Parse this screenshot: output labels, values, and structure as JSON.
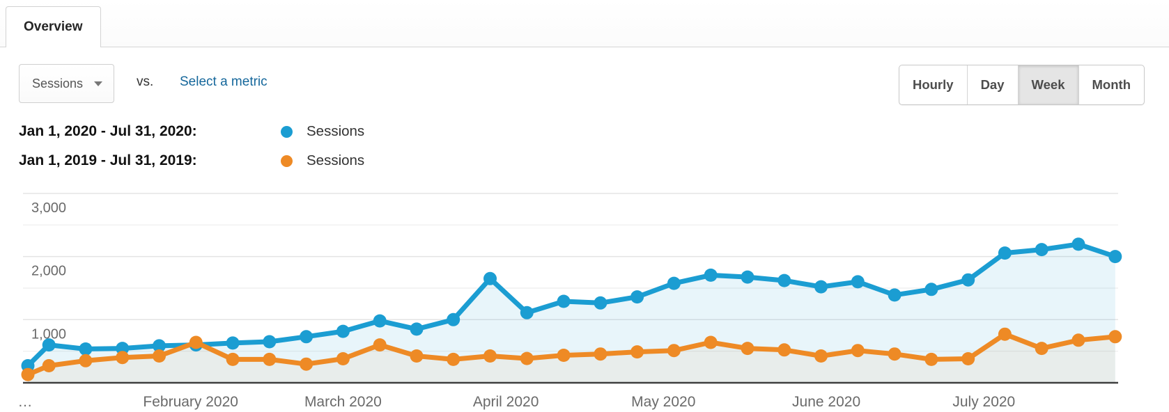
{
  "tab": {
    "label": "Overview"
  },
  "controls": {
    "metric_selector": {
      "value": "Sessions"
    },
    "vs_label": "vs.",
    "select_metric_link": "Select a metric",
    "granularity": {
      "options": [
        "Hourly",
        "Day",
        "Week",
        "Month"
      ],
      "selected": "Week"
    }
  },
  "legend": [
    {
      "range": "Jan 1, 2020 - Jul 31, 2020:",
      "series": "Sessions",
      "color": "#1b9dd2"
    },
    {
      "range": "Jan 1, 2019 - Jul 31, 2019:",
      "series": "Sessions",
      "color": "#ee8a25"
    }
  ],
  "chart_data": {
    "type": "line",
    "title": "",
    "xlabel": "",
    "ylabel": "",
    "x": [
      "Jan 1",
      "Jan 5",
      "Jan 12",
      "Jan 19",
      "Jan 26",
      "Feb 2",
      "Feb 9",
      "Feb 16",
      "Feb 23",
      "Mar 1",
      "Mar 8",
      "Mar 15",
      "Mar 22",
      "Mar 29",
      "Apr 5",
      "Apr 12",
      "Apr 19",
      "Apr 26",
      "May 3",
      "May 10",
      "May 17",
      "May 24",
      "May 31",
      "Jun 7",
      "Jun 14",
      "Jun 21",
      "Jun 28",
      "Jul 5",
      "Jul 12",
      "Jul 19",
      "Jul 26"
    ],
    "series": [
      {
        "name": "Sessions (Jan 1, 2020 - Jul 31, 2020)",
        "color": "#1b9dd2",
        "values": [
          270,
          600,
          535,
          545,
          585,
          600,
          630,
          650,
          730,
          815,
          980,
          850,
          1000,
          1650,
          1110,
          1290,
          1265,
          1360,
          1575,
          1705,
          1675,
          1620,
          1520,
          1600,
          1390,
          1480,
          1630,
          2055,
          2110,
          2195,
          2000
        ]
      },
      {
        "name": "Sessions (Jan 1, 2019 - Jul 31, 2019)",
        "color": "#ee8a25",
        "values": [
          130,
          270,
          350,
          400,
          425,
          640,
          370,
          370,
          295,
          380,
          600,
          425,
          370,
          425,
          385,
          435,
          455,
          490,
          510,
          640,
          545,
          520,
          425,
          510,
          455,
          370,
          380,
          770,
          545,
          675,
          730
        ]
      }
    ],
    "ylim": [
      0,
      3000
    ],
    "yticks": [
      {
        "value": 1000,
        "label": "1,000"
      },
      {
        "value": 2000,
        "label": "2,000"
      },
      {
        "value": 3000,
        "label": "3,000"
      }
    ],
    "minor_gridlines": [
      500,
      1500,
      2500
    ],
    "xticks": [
      {
        "label": "…",
        "at": "Jan 1"
      },
      {
        "label": "February 2020",
        "at": "Feb 1"
      },
      {
        "label": "March 2020",
        "at": "Mar 1"
      },
      {
        "label": "April 2020",
        "at": "Apr 1"
      },
      {
        "label": "May 2020",
        "at": "May 1"
      },
      {
        "label": "June 2020",
        "at": "Jun 1"
      },
      {
        "label": "July 2020",
        "at": "Jul 1"
      }
    ],
    "grid": true,
    "area_fill": true,
    "legend_position": "top-left",
    "granularity": "Week"
  }
}
